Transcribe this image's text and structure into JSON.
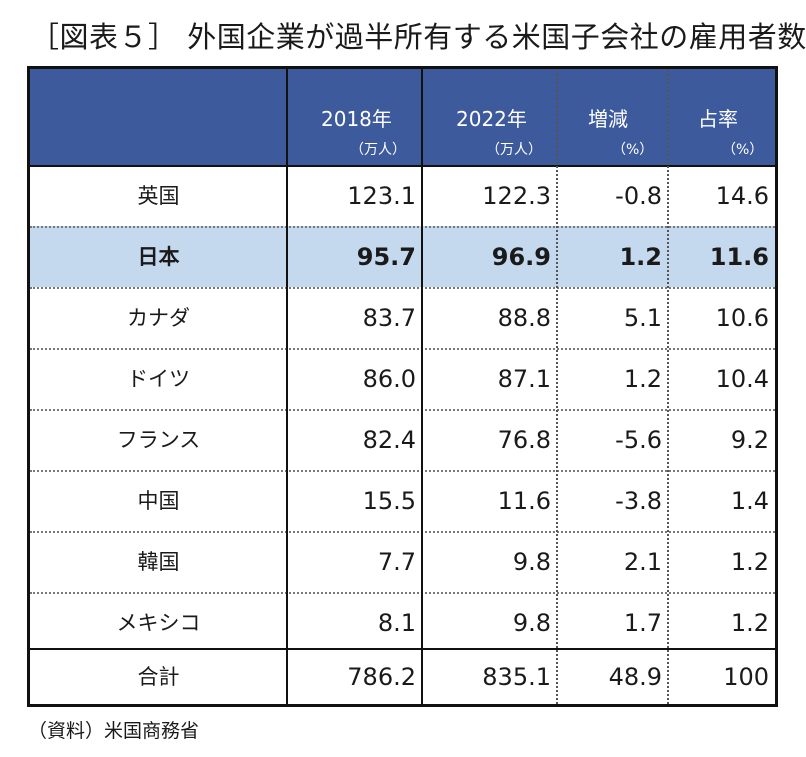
{
  "title": "［図表５］ 外国企業が過半所有する米国子会社の雇用者数",
  "header": {
    "col1_label": "2018年",
    "col1_unit": "（万人）",
    "col2_label": "2022年",
    "col2_unit": "（万人）",
    "col3_label": "増減",
    "col3_unit": "（%）",
    "col4_label": "占率",
    "col4_unit": "（%）"
  },
  "rows": [
    {
      "country": "英国",
      "y2018": "123.1",
      "y2022": "122.3",
      "change": "-0.8",
      "share": "14.6"
    },
    {
      "country": "日本",
      "y2018": "95.7",
      "y2022": "96.9",
      "change": "1.2",
      "share": "11.6"
    },
    {
      "country": "カナダ",
      "y2018": "83.7",
      "y2022": "88.8",
      "change": "5.1",
      "share": "10.6"
    },
    {
      "country": "ドイツ",
      "y2018": "86.0",
      "y2022": "87.1",
      "change": "1.2",
      "share": "10.4"
    },
    {
      "country": "フランス",
      "y2018": "82.4",
      "y2022": "76.8",
      "change": "-5.6",
      "share": "9.2"
    },
    {
      "country": "中国",
      "y2018": "15.5",
      "y2022": "11.6",
      "change": "-3.8",
      "share": "1.4"
    },
    {
      "country": "韓国",
      "y2018": "7.7",
      "y2022": "9.8",
      "change": "2.1",
      "share": "1.2"
    },
    {
      "country": "メキシコ",
      "y2018": "8.1",
      "y2022": "9.8",
      "change": "1.7",
      "share": "1.2"
    },
    {
      "country": "合計",
      "y2018": "786.2",
      "y2022": "835.1",
      "change": "48.9",
      "share": "100"
    }
  ],
  "highlight_color": "#c5d9ee",
  "header_color": "#3c5a9c",
  "source": "（資料）米国商務省"
}
